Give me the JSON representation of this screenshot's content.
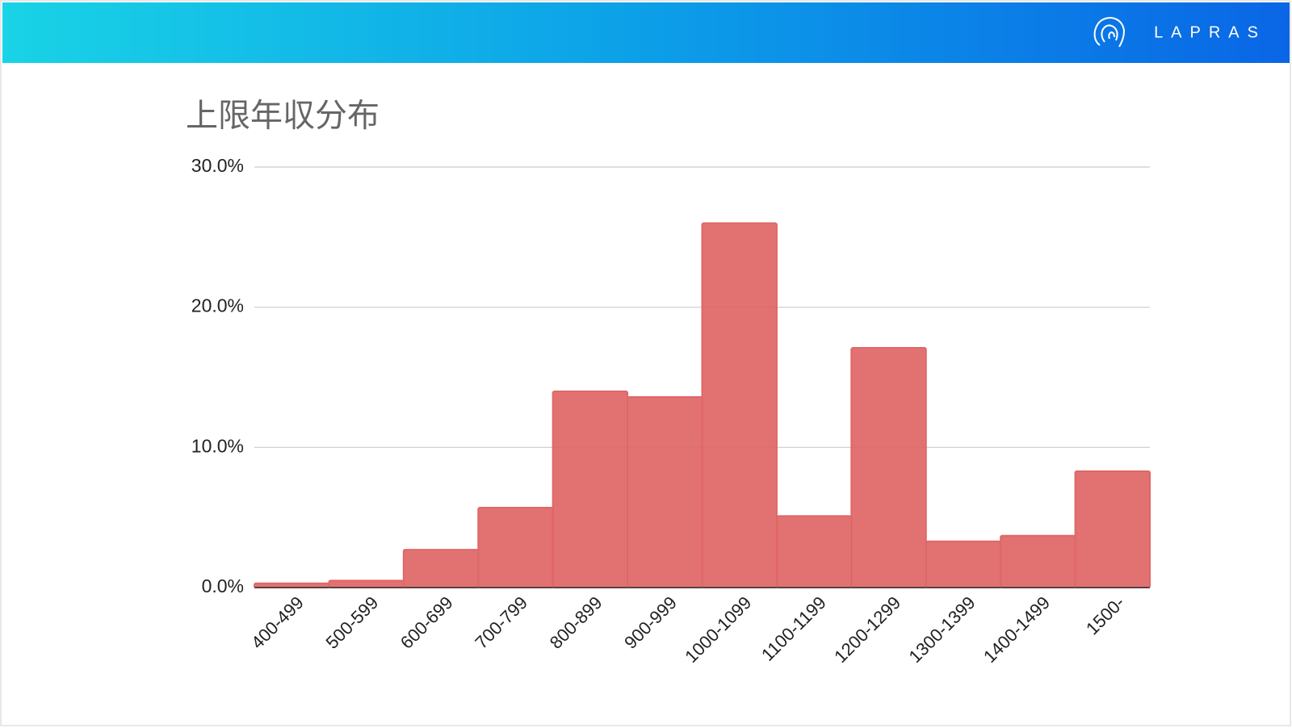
{
  "header": {
    "brand": "LAPRAS"
  },
  "chart_data": {
    "type": "area",
    "step": true,
    "title": "上限年収分布",
    "categories": [
      "400-499",
      "500-599",
      "600-699",
      "700-799",
      "800-899",
      "900-999",
      "1000-1099",
      "1100-1199",
      "1200-1299",
      "1300-1399",
      "1400-1499",
      "1500-"
    ],
    "values": [
      0.3,
      0.5,
      2.7,
      5.7,
      14.0,
      13.6,
      26.0,
      5.1,
      17.1,
      3.3,
      3.7,
      8.3
    ],
    "color": "#e06666",
    "ylim": [
      0,
      30
    ],
    "yticks": [
      {
        "value": 0,
        "label": "0.0%"
      },
      {
        "value": 10,
        "label": "10.0%"
      },
      {
        "value": 20,
        "label": "20.0%"
      },
      {
        "value": 30,
        "label": "30.0%"
      }
    ],
    "grid": true
  }
}
